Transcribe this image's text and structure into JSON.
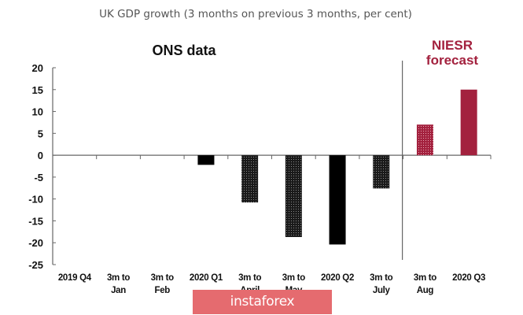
{
  "chart_data": {
    "type": "bar",
    "title": "UK GDP growth (3 months on previous 3 months, per cent)",
    "xlabel": "",
    "ylabel": "",
    "ylim": [
      -25,
      20
    ],
    "yticks": [
      20,
      15,
      10,
      5,
      0,
      -5,
      -10,
      -15,
      -20,
      -25
    ],
    "grid": false,
    "annotations": [
      {
        "text": "ONS data",
        "region": "left"
      },
      {
        "text_lines": [
          "NIESR",
          "forecast"
        ],
        "region": "right"
      }
    ],
    "categories": [
      [
        "2019 Q4"
      ],
      [
        "3m to",
        "Jan"
      ],
      [
        "3m to",
        "Feb"
      ],
      [
        "2020 Q1"
      ],
      [
        "3m to",
        "April"
      ],
      [
        "3m to",
        "May"
      ],
      [
        "2020 Q2"
      ],
      [
        "3m to",
        "July"
      ],
      [
        "3m to",
        "Aug"
      ],
      [
        "2020 Q3"
      ]
    ],
    "values": [
      null,
      null,
      null,
      -2.2,
      -10.8,
      -18.7,
      -20.4,
      -7.6,
      7.0,
      15.0
    ],
    "bar_styles": [
      "solid",
      "dotted",
      "dotted",
      "solid",
      "dotted",
      "dotted",
      "solid",
      "dotted",
      "dotted-forecast",
      "solid-forecast"
    ],
    "forecast_start_index": 8,
    "colors": {
      "ons": "#000000",
      "forecast": "#a3213e",
      "axis": "#666666"
    }
  },
  "watermark": {
    "text": "instaforex"
  }
}
